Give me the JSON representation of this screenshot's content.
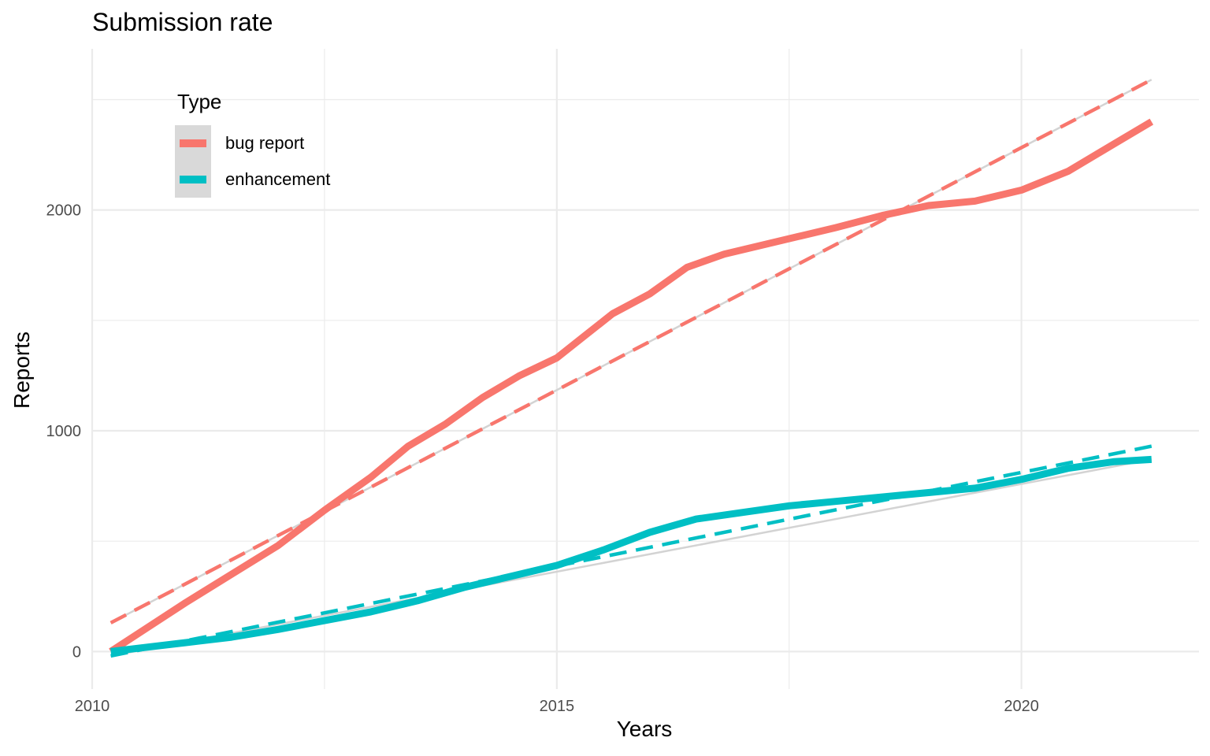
{
  "chart_data": {
    "type": "line",
    "title": "Submission rate",
    "xlabel": "Years",
    "ylabel": "Reports",
    "xlim": [
      2010.0,
      2021.91
    ],
    "ylim": [
      -170,
      2730
    ],
    "x_ticks": [
      2010,
      2015,
      2020
    ],
    "x_tick_labels": [
      "2010",
      "2015",
      "2020"
    ],
    "y_ticks": [
      0,
      1000,
      2000
    ],
    "y_tick_labels": [
      "0",
      "1000",
      "2000"
    ],
    "grid": true,
    "legend": {
      "title": "Type",
      "position": "top-left",
      "entries": [
        "bug report",
        "enhancement"
      ]
    },
    "series": [
      {
        "name": "bug report",
        "style": "solid",
        "color": "#F8766D",
        "x": [
          2010.2,
          2010.6,
          2011.0,
          2011.5,
          2012.0,
          2012.5,
          2013.0,
          2013.4,
          2013.8,
          2014.2,
          2014.6,
          2015.0,
          2015.3,
          2015.6,
          2016.0,
          2016.4,
          2016.8,
          2017.2,
          2017.6,
          2018.0,
          2018.5,
          2019.0,
          2019.5,
          2020.0,
          2020.5,
          2021.0,
          2021.4
        ],
        "y": [
          0,
          110,
          220,
          350,
          480,
          640,
          790,
          930,
          1030,
          1150,
          1250,
          1330,
          1430,
          1530,
          1620,
          1740,
          1800,
          1840,
          1880,
          1920,
          1975,
          2020,
          2040,
          2090,
          2175,
          2300,
          2400
        ]
      },
      {
        "name": "enhancement",
        "style": "solid",
        "color": "#00BFC4",
        "x": [
          2010.2,
          2010.6,
          2011.0,
          2011.5,
          2012.0,
          2012.5,
          2013.0,
          2013.5,
          2014.0,
          2014.5,
          2015.0,
          2015.5,
          2016.0,
          2016.5,
          2017.0,
          2017.5,
          2018.0,
          2018.5,
          2019.0,
          2019.5,
          2020.0,
          2020.5,
          2021.0,
          2021.4
        ],
        "y": [
          0,
          20,
          40,
          65,
          100,
          140,
          180,
          230,
          290,
          340,
          390,
          460,
          540,
          600,
          630,
          660,
          680,
          700,
          720,
          740,
          780,
          830,
          860,
          870
        ]
      },
      {
        "name": "bug report trend",
        "style": "dashed",
        "color": "#F8766D",
        "x": [
          2010.2,
          2021.4
        ],
        "y": [
          130,
          2590
        ]
      },
      {
        "name": "enhancement trend",
        "style": "dashed",
        "color": "#00BFC4",
        "x": [
          2010.2,
          2021.4
        ],
        "y": [
          -20,
          930
        ]
      }
    ],
    "reference_lines": [
      {
        "color": "#d3d3d3",
        "x": [
          2010.2,
          2021.4
        ],
        "y": [
          130,
          2590
        ]
      },
      {
        "color": "#d3d3d3",
        "x": [
          2010.2,
          2021.4
        ],
        "y": [
          -20,
          870
        ]
      }
    ]
  }
}
